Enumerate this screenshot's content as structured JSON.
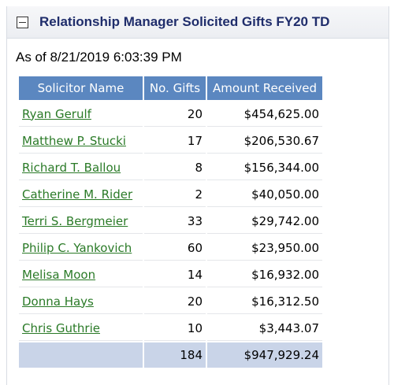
{
  "panel": {
    "title": "Relationship Manager Solicited Gifts FY20 TD",
    "collapse_icon": "minus-box-icon"
  },
  "as_of": "As of 8/21/2019 6:03:39 PM",
  "table": {
    "headers": {
      "name": "Solicitor Name",
      "gifts": "No. Gifts",
      "amount": "Amount Received"
    },
    "rows": [
      {
        "name": "Ryan Gerulf",
        "gifts": "20",
        "amount": "$454,625.00"
      },
      {
        "name": "Matthew P. Stucki",
        "gifts": "17",
        "amount": "$206,530.67"
      },
      {
        "name": "Richard T. Ballou",
        "gifts": "8",
        "amount": "$156,344.00"
      },
      {
        "name": "Catherine M. Rider",
        "gifts": "2",
        "amount": "$40,050.00"
      },
      {
        "name": "Terri S. Bergmeier",
        "gifts": "33",
        "amount": "$29,742.00"
      },
      {
        "name": "Philip C. Yankovich",
        "gifts": "60",
        "amount": "$23,950.00"
      },
      {
        "name": "Melisa Moon",
        "gifts": "14",
        "amount": "$16,932.00"
      },
      {
        "name": "Donna Hays",
        "gifts": "20",
        "amount": "$16,312.50"
      },
      {
        "name": "Chris Guthrie",
        "gifts": "10",
        "amount": "$3,443.07"
      }
    ],
    "total": {
      "gifts": "184",
      "amount": "$947,929.24"
    }
  },
  "colors": {
    "header_bg": "#5b87c0",
    "link": "#2a7a27",
    "title": "#1f2d6b",
    "total_bg": "#c9d4e8"
  }
}
